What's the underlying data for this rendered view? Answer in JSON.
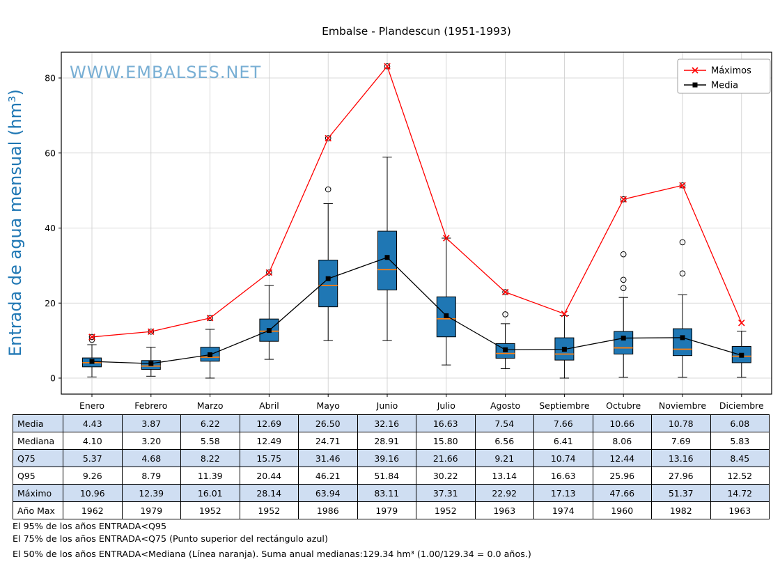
{
  "chart_data": {
    "type": "boxplot",
    "title": "Embalse - Plandescun (1951-1993)",
    "watermark": "WWW.EMBALSES.NET",
    "ylabel": "Entrada de agua mensual (hm³)",
    "xlabel": "",
    "ylim": [
      -4.3,
      86.9
    ],
    "yticks": [
      0,
      20,
      40,
      60,
      80
    ],
    "grid": true,
    "legend_position": "upper right",
    "categories": [
      "Enero",
      "Febrero",
      "Marzo",
      "Abril",
      "Mayo",
      "Junio",
      "Julio",
      "Agosto",
      "Septiembre",
      "Octubre",
      "Noviembre",
      "Diciembre"
    ],
    "series": [
      {
        "name": "Máximos",
        "type": "line",
        "color": "red",
        "marker": "x",
        "values": [
          10.96,
          12.39,
          16.01,
          28.14,
          63.94,
          83.11,
          37.31,
          22.92,
          17.13,
          47.66,
          51.37,
          14.72
        ]
      },
      {
        "name": "Media",
        "type": "line",
        "color": "#000000",
        "marker": "square",
        "values": [
          4.43,
          3.87,
          6.22,
          12.69,
          26.5,
          32.16,
          16.63,
          7.54,
          7.66,
          10.66,
          10.78,
          6.08
        ]
      }
    ],
    "boxes": [
      {
        "month": "Enero",
        "whisker_low": 0.3,
        "q1": 3.0,
        "median": 4.1,
        "q3": 5.37,
        "whisker_high": 8.9,
        "outliers": [
          10.2,
          10.96
        ]
      },
      {
        "month": "Febrero",
        "whisker_low": 0.5,
        "q1": 2.3,
        "median": 3.2,
        "q3": 4.68,
        "whisker_high": 8.2,
        "outliers": [
          12.39
        ]
      },
      {
        "month": "Marzo",
        "whisker_low": 0.0,
        "q1": 4.5,
        "median": 5.58,
        "q3": 8.22,
        "whisker_high": 13.0,
        "outliers": [
          16.01
        ]
      },
      {
        "month": "Abril",
        "whisker_low": 5.0,
        "q1": 9.8,
        "median": 12.49,
        "q3": 15.75,
        "whisker_high": 24.7,
        "outliers": [
          28.14
        ]
      },
      {
        "month": "Mayo",
        "whisker_low": 10.0,
        "q1": 19.0,
        "median": 24.71,
        "q3": 31.46,
        "whisker_high": 46.5,
        "outliers": [
          50.3,
          63.94
        ]
      },
      {
        "month": "Junio",
        "whisker_low": 10.0,
        "q1": 23.5,
        "median": 28.91,
        "q3": 39.16,
        "whisker_high": 58.9,
        "outliers": [
          83.11
        ]
      },
      {
        "month": "Julio",
        "whisker_low": 3.5,
        "q1": 11.0,
        "median": 15.8,
        "q3": 21.66,
        "whisker_high": 37.31,
        "outliers": []
      },
      {
        "month": "Agosto",
        "whisker_low": 2.5,
        "q1": 5.3,
        "median": 6.56,
        "q3": 9.21,
        "whisker_high": 14.5,
        "outliers": [
          17.0,
          22.92
        ]
      },
      {
        "month": "Septiembre",
        "whisker_low": 0.0,
        "q1": 4.8,
        "median": 6.41,
        "q3": 10.74,
        "whisker_high": 16.63,
        "outliers": []
      },
      {
        "month": "Octubre",
        "whisker_low": 0.2,
        "q1": 6.4,
        "median": 8.06,
        "q3": 12.44,
        "whisker_high": 21.5,
        "outliers": [
          24.0,
          26.2,
          33.0,
          47.66
        ]
      },
      {
        "month": "Noviembre",
        "whisker_low": 0.2,
        "q1": 6.0,
        "median": 7.69,
        "q3": 13.16,
        "whisker_high": 22.2,
        "outliers": [
          27.9,
          36.2,
          51.37
        ]
      },
      {
        "month": "Diciembre",
        "whisker_low": 0.2,
        "q1": 4.1,
        "median": 5.83,
        "q3": 8.45,
        "whisker_high": 12.5,
        "outliers": []
      }
    ],
    "colors": {
      "box": "#1f77b4",
      "median": "#ff7f0e",
      "maximos": "red",
      "media": "#000000",
      "ylabel": "#1f77b4",
      "watermark": "#79afd4",
      "grid": "#cccccc",
      "table_shaded_row": "#cfdef2"
    }
  },
  "table": {
    "rows": [
      {
        "label": "Media",
        "values": [
          "4.43",
          "3.87",
          "6.22",
          "12.69",
          "26.50",
          "32.16",
          "16.63",
          "7.54",
          "7.66",
          "10.66",
          "10.78",
          "6.08"
        ]
      },
      {
        "label": "Mediana",
        "values": [
          "4.10",
          "3.20",
          "5.58",
          "12.49",
          "24.71",
          "28.91",
          "15.80",
          "6.56",
          "6.41",
          "8.06",
          "7.69",
          "5.83"
        ]
      },
      {
        "label": "Q75",
        "values": [
          "5.37",
          "4.68",
          "8.22",
          "15.75",
          "31.46",
          "39.16",
          "21.66",
          "9.21",
          "10.74",
          "12.44",
          "13.16",
          "8.45"
        ]
      },
      {
        "label": "Q95",
        "values": [
          "9.26",
          "8.79",
          "11.39",
          "20.44",
          "46.21",
          "51.84",
          "30.22",
          "13.14",
          "16.63",
          "25.96",
          "27.96",
          "12.52"
        ]
      },
      {
        "label": "Máximo",
        "values": [
          "10.96",
          "12.39",
          "16.01",
          "28.14",
          "63.94",
          "83.11",
          "37.31",
          "22.92",
          "17.13",
          "47.66",
          "51.37",
          "14.72"
        ]
      },
      {
        "label": "Año Max",
        "values": [
          "1962",
          "1979",
          "1952",
          "1952",
          "1986",
          "1979",
          "1952",
          "1963",
          "1974",
          "1960",
          "1982",
          "1963"
        ]
      }
    ]
  },
  "footnotes": [
    "El 95% de los años ENTRADA<Q95",
    "El 75% de los años ENTRADA<Q75 (Punto superior del rectángulo azul)",
    "El 50% de los años ENTRADA<Mediana (Línea naranja). Suma anual medianas:129.34 hm³ (1.00/129.34 = 0.0 años.)"
  ]
}
